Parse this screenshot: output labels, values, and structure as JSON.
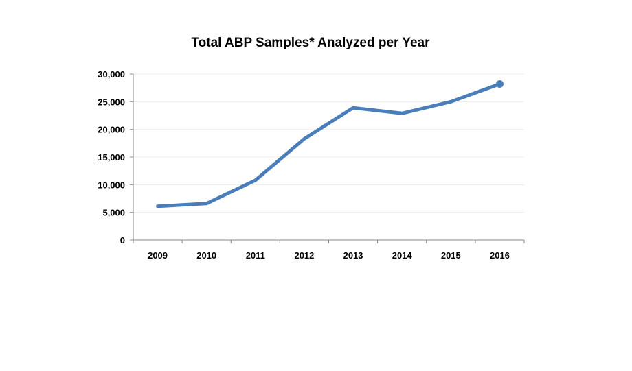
{
  "chart_data": {
    "type": "line",
    "title": "Total ABP Samples* Analyzed per Year",
    "xlabel": "",
    "ylabel": "",
    "categories": [
      "2009",
      "2010",
      "2011",
      "2012",
      "2013",
      "2014",
      "2015",
      "2016"
    ],
    "series": [
      {
        "values": [
          6100,
          6600,
          10800,
          18300,
          23900,
          22900,
          25000,
          28200
        ],
        "color": "#4a7ebb"
      }
    ],
    "ylim": [
      0,
      30000
    ],
    "y_ticks": [
      0,
      5000,
      10000,
      15000,
      20000,
      25000,
      30000
    ],
    "y_tick_labels": [
      "0",
      "5,000",
      "10,000",
      "15,000",
      "20,000",
      "25,000",
      "30,000"
    ],
    "grid": true,
    "legend": "none"
  }
}
